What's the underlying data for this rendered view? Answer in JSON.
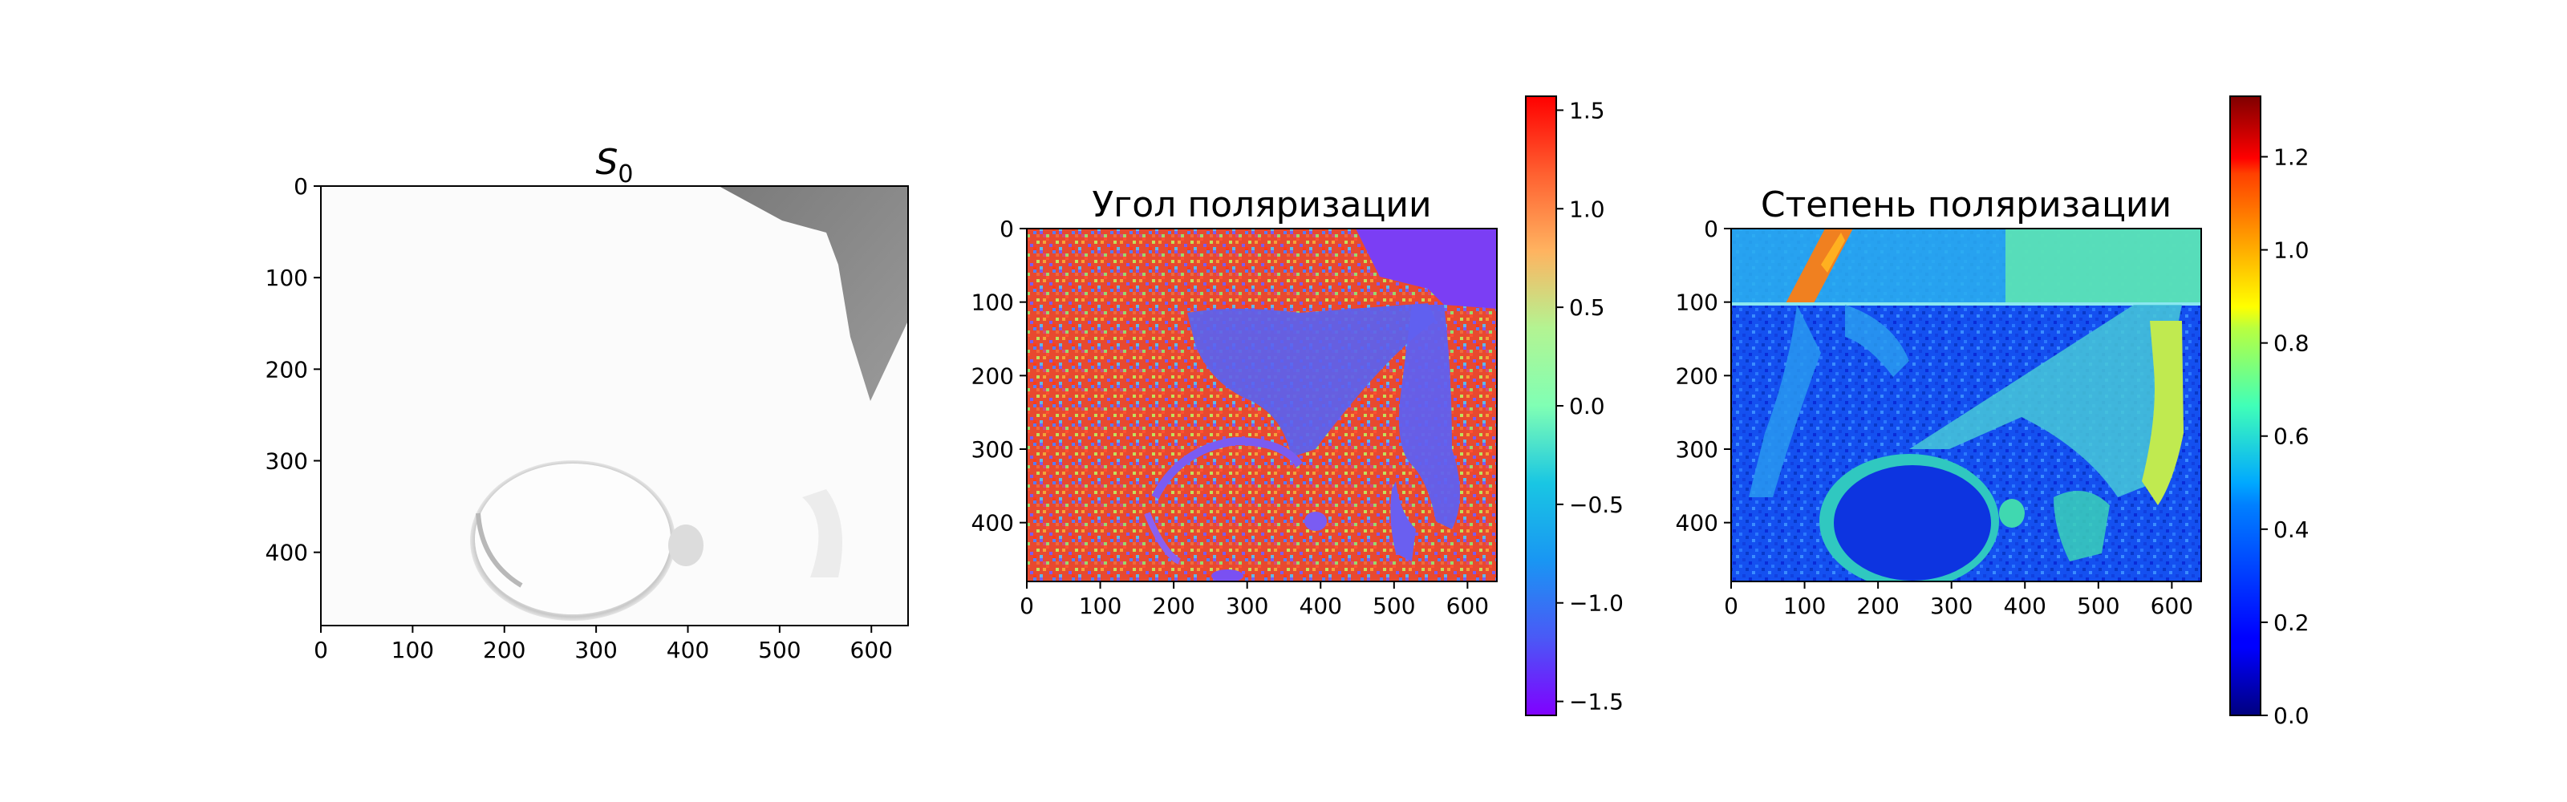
{
  "chart_data": [
    {
      "type": "heatmap",
      "title": "S",
      "title_subscript": "0",
      "xlabel": "",
      "ylabel": "",
      "xlim": [
        0,
        640
      ],
      "ylim": [
        480,
        0
      ],
      "x_ticks": [
        0,
        100,
        200,
        300,
        400,
        500,
        600
      ],
      "y_ticks": [
        0,
        100,
        200,
        300,
        400
      ],
      "colormap": "gray_r",
      "colorbar": false
    },
    {
      "type": "heatmap",
      "title": "Угол поляризации",
      "xlabel": "",
      "ylabel": "",
      "xlim": [
        0,
        640
      ],
      "ylim": [
        480,
        0
      ],
      "x_ticks": [
        0,
        100,
        200,
        300,
        400,
        500,
        600
      ],
      "y_ticks": [
        0,
        100,
        200,
        300,
        400
      ],
      "colormap": "rainbow",
      "colorbar": true,
      "colorbar_range": [
        -1.5708,
        1.5708
      ],
      "colorbar_ticks": [
        1.5,
        1.0,
        0.5,
        0.0,
        -0.5,
        -1.0,
        -1.5
      ],
      "colorbar_tick_labels": [
        "1.5",
        "1.0",
        "0.5",
        "0.0",
        "−0.5",
        "−1.0",
        "−1.5"
      ]
    },
    {
      "type": "heatmap",
      "title": "Степень поляризации",
      "xlabel": "",
      "ylabel": "",
      "xlim": [
        0,
        640
      ],
      "ylim": [
        480,
        0
      ],
      "x_ticks": [
        0,
        100,
        200,
        300,
        400,
        500,
        600
      ],
      "y_ticks": [
        0,
        100,
        200,
        300,
        400
      ],
      "colormap": "jet",
      "colorbar": true,
      "colorbar_range": [
        0,
        1.33
      ],
      "colorbar_ticks": [
        1.2,
        1.0,
        0.8,
        0.6,
        0.4,
        0.2,
        0.0
      ],
      "colorbar_tick_labels": [
        "1.2",
        "1.0",
        "0.8",
        "0.6",
        "0.4",
        "0.2",
        "0.0"
      ]
    }
  ]
}
